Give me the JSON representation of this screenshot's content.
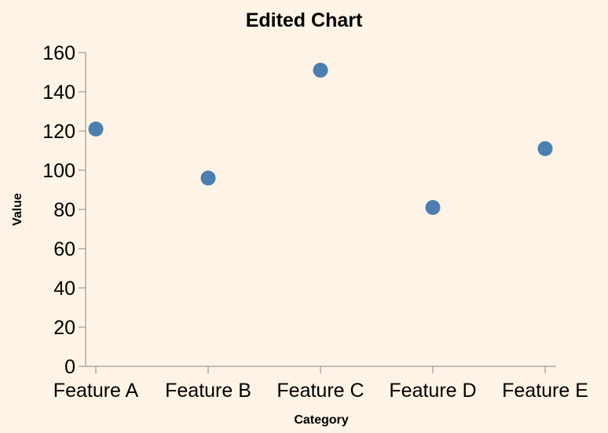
{
  "chart_data": {
    "type": "scatter",
    "title": "Edited Chart",
    "xlabel": "Category",
    "ylabel": "Value",
    "categories": [
      "Feature A",
      "Feature B",
      "Feature C",
      "Feature D",
      "Feature E"
    ],
    "values": [
      121,
      96,
      151,
      81,
      111
    ],
    "ylim": [
      0,
      160
    ],
    "yticks": [
      0,
      20,
      40,
      60,
      80,
      100,
      120,
      140,
      160
    ],
    "grid": false,
    "point_color": "#4c7eb0",
    "background_color": "#fdf3e6"
  }
}
